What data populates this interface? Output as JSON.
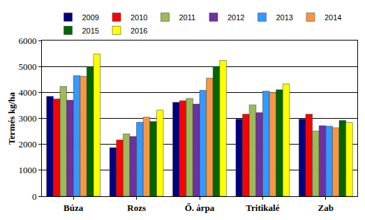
{
  "chart_data": {
    "type": "bar",
    "y_label": "Termés kg/ha",
    "categories": [
      "Búza",
      "Rozs",
      "Ő. árpa",
      "Tritikalé",
      "Zab"
    ],
    "series": [
      {
        "name": "2009",
        "color": "#000080",
        "values": [
          3850,
          1870,
          3620,
          2970,
          2970
        ]
      },
      {
        "name": "2010",
        "color": "#ff0000",
        "values": [
          3750,
          2170,
          3680,
          3160,
          3160
        ]
      },
      {
        "name": "2011",
        "color": "#9bbb59",
        "values": [
          4230,
          2400,
          3770,
          3520,
          2510
        ]
      },
      {
        "name": "2012",
        "color": "#7030a0",
        "values": [
          3700,
          2300,
          3550,
          3220,
          2720
        ]
      },
      {
        "name": "2013",
        "color": "#3399ff",
        "values": [
          4650,
          2850,
          4080,
          4050,
          2700
        ]
      },
      {
        "name": "2014",
        "color": "#f79646",
        "values": [
          4620,
          3050,
          4550,
          4000,
          2640
        ]
      },
      {
        "name": "2015",
        "color": "#006600",
        "values": [
          5000,
          2880,
          5000,
          4100,
          2920
        ]
      },
      {
        "name": "2016",
        "color": "#ffff00",
        "values": [
          5480,
          3320,
          5230,
          4330,
          2840
        ]
      }
    ],
    "ylim": [
      0,
      6000
    ],
    "yticks": [
      0,
      1000,
      2000,
      3000,
      4000,
      5000,
      6000
    ],
    "grid": true,
    "legend": "top"
  }
}
